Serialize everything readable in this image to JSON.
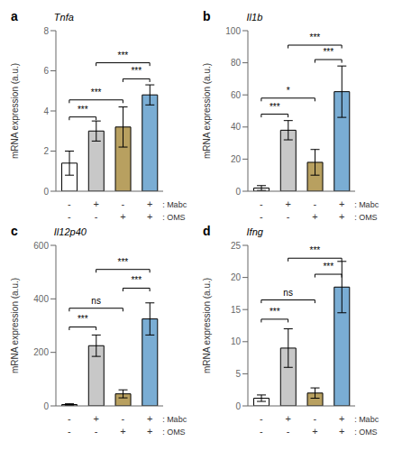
{
  "chart_data": [
    {
      "type": "bar",
      "title": "a",
      "subtitle": "Tnfa",
      "y_label": "mRNA expression (a.u.)",
      "categories": [
        [
          "-",
          "-"
        ],
        [
          "+",
          "-"
        ],
        [
          "-",
          "+"
        ],
        [
          "+",
          "+"
        ]
      ],
      "annotations": [
        ": Mabc",
        ": OMS"
      ],
      "values": [
        1.4,
        3.0,
        3.2,
        4.8
      ],
      "errors": [
        0.6,
        0.5,
        1.0,
        0.5
      ],
      "colors": [
        "#ffffff",
        "#c8c8c8",
        "#b8a060",
        "#7aadd4"
      ],
      "edge_color": "#000000",
      "ylim": [
        0,
        8
      ],
      "yticks": [
        0,
        2,
        4,
        6,
        8
      ],
      "significance": [
        {
          "x1": 0,
          "x2": 1,
          "y": 3.7,
          "text": "***"
        },
        {
          "x1": 0,
          "x2": 2,
          "y": 4.55,
          "text": "***"
        },
        {
          "x1": 2,
          "x2": 3,
          "y": 5.6,
          "text": "***"
        },
        {
          "x1": 1,
          "x2": 3,
          "y": 6.4,
          "text": "***"
        }
      ]
    },
    {
      "type": "bar",
      "title": "b",
      "subtitle": "Il1b",
      "y_label": "mRNA expression (a.u.)",
      "categories": [
        [
          "-",
          "-"
        ],
        [
          "+",
          "-"
        ],
        [
          "-",
          "+"
        ],
        [
          "+",
          "+"
        ]
      ],
      "annotations": [
        ": Mabc",
        ": OMS"
      ],
      "values": [
        2.0,
        38.0,
        18.0,
        62.0
      ],
      "errors": [
        1.5,
        6.0,
        8.0,
        16.0
      ],
      "colors": [
        "#ffffff",
        "#c8c8c8",
        "#b8a060",
        "#7aadd4"
      ],
      "edge_color": "#000000",
      "ylim": [
        0,
        100
      ],
      "yticks": [
        0,
        20,
        40,
        60,
        80,
        100
      ],
      "significance": [
        {
          "x1": 0,
          "x2": 1,
          "y": 48,
          "text": "***"
        },
        {
          "x1": 0,
          "x2": 2,
          "y": 58,
          "text": "*"
        },
        {
          "x1": 2,
          "x2": 3,
          "y": 82,
          "text": "***"
        },
        {
          "x1": 1,
          "x2": 3,
          "y": 91,
          "text": "***"
        }
      ]
    },
    {
      "type": "bar",
      "title": "c",
      "subtitle": "Il12p40",
      "y_label": "mRNA expression (a.u.)",
      "categories": [
        [
          "-",
          "-"
        ],
        [
          "+",
          "-"
        ],
        [
          "-",
          "+"
        ],
        [
          "+",
          "+"
        ]
      ],
      "annotations": [
        ": Mabc",
        ": OMS"
      ],
      "values": [
        5.0,
        225.0,
        45.0,
        325.0
      ],
      "errors": [
        3.0,
        40.0,
        15.0,
        60.0
      ],
      "colors": [
        "#ffffff",
        "#c8c8c8",
        "#b8a060",
        "#7aadd4"
      ],
      "edge_color": "#000000",
      "ylim": [
        0,
        600
      ],
      "yticks": [
        0,
        200,
        400,
        600
      ],
      "significance": [
        {
          "x1": 0,
          "x2": 1,
          "y": 295,
          "text": "***"
        },
        {
          "x1": 0,
          "x2": 2,
          "y": 365,
          "text": "ns"
        },
        {
          "x1": 2,
          "x2": 3,
          "y": 440,
          "text": "***"
        },
        {
          "x1": 1,
          "x2": 3,
          "y": 510,
          "text": "***"
        }
      ]
    },
    {
      "type": "bar",
      "title": "d",
      "subtitle": "Ifng",
      "y_label": "mRNA expression (a.u.)",
      "categories": [
        [
          "-",
          "-"
        ],
        [
          "+",
          "-"
        ],
        [
          "-",
          "+"
        ],
        [
          "+",
          "+"
        ]
      ],
      "annotations": [
        ": Mabc",
        ": OMS"
      ],
      "values": [
        1.2,
        9.0,
        2.0,
        18.5
      ],
      "errors": [
        0.5,
        3.0,
        0.8,
        4.0
      ],
      "colors": [
        "#ffffff",
        "#c8c8c8",
        "#b8a060",
        "#7aadd4"
      ],
      "edge_color": "#000000",
      "ylim": [
        0,
        25
      ],
      "yticks": [
        0,
        5,
        10,
        15,
        20,
        25
      ],
      "significance": [
        {
          "x1": 0,
          "x2": 1,
          "y": 13.5,
          "text": "***"
        },
        {
          "x1": 0,
          "x2": 2,
          "y": 16.5,
          "text": "ns"
        },
        {
          "x1": 2,
          "x2": 3,
          "y": 20.5,
          "text": "***"
        },
        {
          "x1": 1,
          "x2": 3,
          "y": 23.0,
          "text": "***"
        }
      ]
    }
  ]
}
